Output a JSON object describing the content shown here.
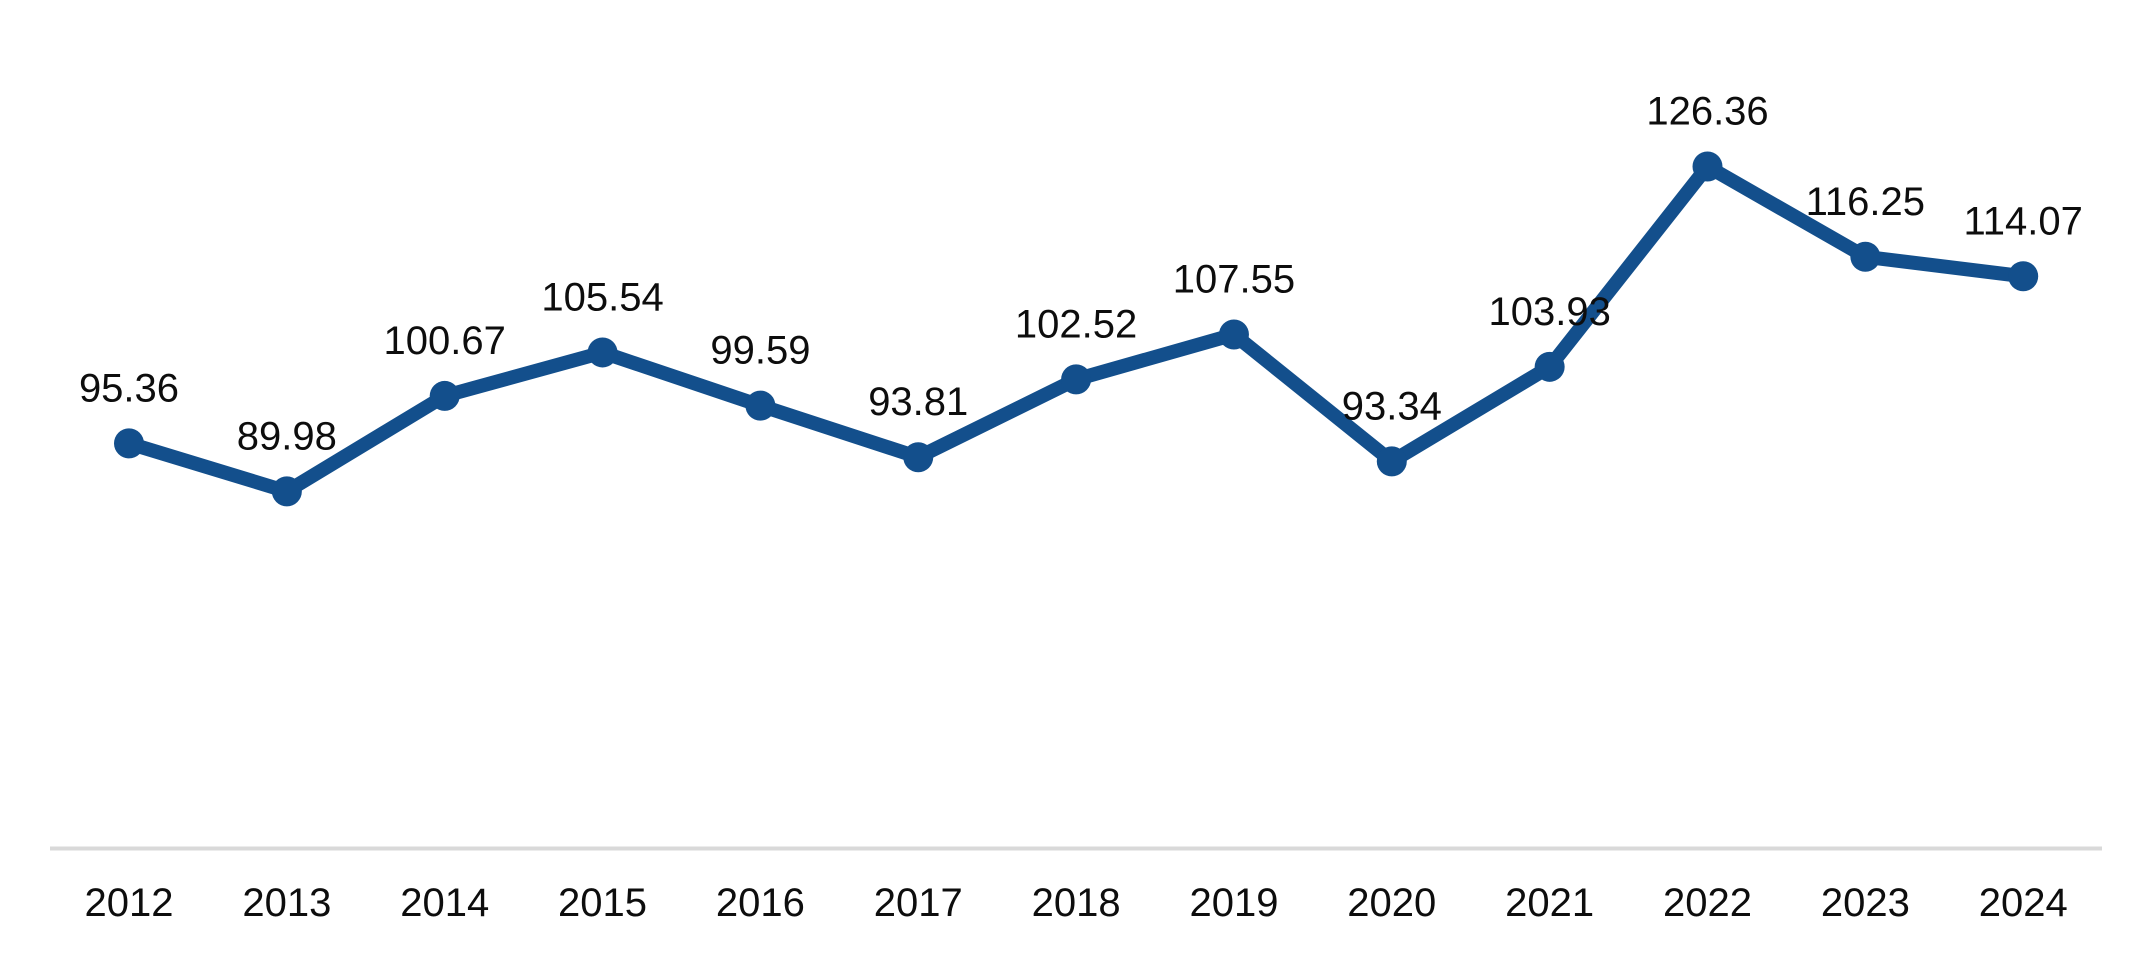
{
  "chart_data": {
    "type": "line",
    "title": "",
    "categories": [
      "2012",
      "2013",
      "2014",
      "2015",
      "2016",
      "2017",
      "2018",
      "2019",
      "2020",
      "2021",
      "2022",
      "2023",
      "2024"
    ],
    "values": [
      95.36,
      89.98,
      100.67,
      105.54,
      99.59,
      93.81,
      102.52,
      107.55,
      93.34,
      103.93,
      126.36,
      116.25,
      114.07
    ],
    "data_labels": [
      "95.36",
      "89.98",
      "100.67",
      "105.54",
      "99.59",
      "93.81",
      "102.52",
      "107.55",
      "93.34",
      "103.93",
      "126.36",
      "116.25",
      "114.07"
    ],
    "xlabel": "",
    "ylabel": "",
    "ylim": [
      50,
      145
    ],
    "legend": "none",
    "gridlines": "off",
    "y_axis_visible": false,
    "x_axis_line_visible": true,
    "data_labels_position": "above",
    "colors": {
      "line": "#134F8C",
      "marker": "#134F8C",
      "data_label_text": "#0D0D0D",
      "tick_label_text": "#0D0D0D",
      "x_axis_line": "#D9D9D9",
      "background": "#FFFFFF"
    }
  }
}
